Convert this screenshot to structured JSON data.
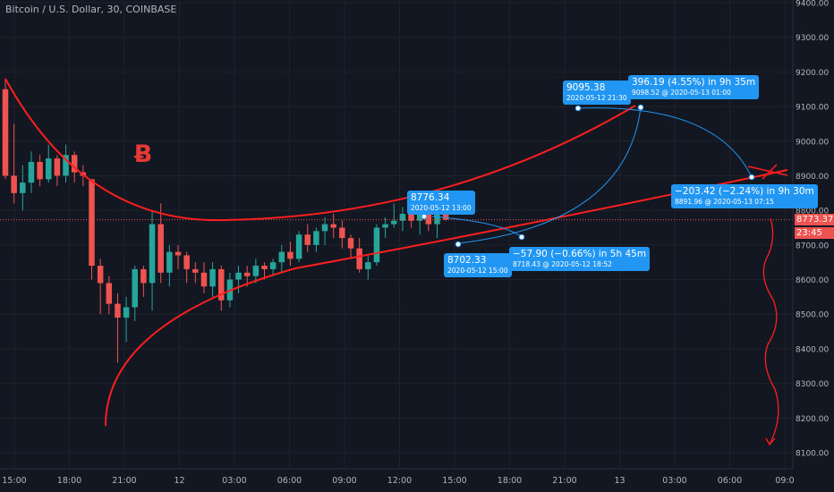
{
  "header": {
    "title": "Bitcoin / U.S. Dollar, 30, COINBASE"
  },
  "price_axis": {
    "current_price": "8773.37",
    "countdown": "23:45"
  },
  "colors": {
    "background": "#131722",
    "up": "#26a69a",
    "down": "#ef5350",
    "pattern_line": "#ff1e1e",
    "projection": "#2196f3",
    "logo": "#e53935"
  },
  "chart_data": {
    "type": "candlestick",
    "title": "Bitcoin / U.S. Dollar, 30, COINBASE",
    "y_ticks": [
      8100,
      8200,
      8300,
      8400,
      8500,
      8600,
      8700,
      8800,
      8900,
      9000,
      9100,
      9200,
      9300,
      9400
    ],
    "ylim": [
      8050,
      9410
    ],
    "x_ticks": [
      "15:00",
      "18:00",
      "21:00",
      "12",
      "03:00",
      "06:00",
      "09:00",
      "12:00",
      "15:00",
      "18:00",
      "21:00",
      "13",
      "03:00",
      "06:00",
      "09:0"
    ],
    "candles": [
      [
        9150,
        9180,
        8890,
        8900
      ],
      [
        8900,
        9050,
        8820,
        8850
      ],
      [
        8850,
        8930,
        8800,
        8880
      ],
      [
        8880,
        8970,
        8850,
        8940
      ],
      [
        8940,
        8960,
        8870,
        8890
      ],
      [
        8890,
        8990,
        8880,
        8950
      ],
      [
        8950,
        8960,
        8870,
        8900
      ],
      [
        8900,
        8990,
        8880,
        8960
      ],
      [
        8960,
        8970,
        8880,
        8910
      ],
      [
        8910,
        8930,
        8870,
        8900
      ],
      [
        8890,
        8890,
        8600,
        8640
      ],
      [
        8640,
        8660,
        8500,
        8590
      ],
      [
        8590,
        8610,
        8500,
        8530
      ],
      [
        8530,
        8560,
        8360,
        8490
      ],
      [
        8490,
        8550,
        8420,
        8520
      ],
      [
        8520,
        8640,
        8480,
        8630
      ],
      [
        8630,
        8640,
        8550,
        8590
      ],
      [
        8590,
        8800,
        8510,
        8760
      ],
      [
        8760,
        8820,
        8590,
        8620
      ],
      [
        8620,
        8700,
        8580,
        8680
      ],
      [
        8680,
        8700,
        8630,
        8670
      ],
      [
        8670,
        8680,
        8590,
        8630
      ],
      [
        8630,
        8650,
        8590,
        8620
      ],
      [
        8620,
        8650,
        8560,
        8580
      ],
      [
        8580,
        8650,
        8550,
        8630
      ],
      [
        8630,
        8640,
        8510,
        8540
      ],
      [
        8540,
        8620,
        8520,
        8600
      ],
      [
        8600,
        8640,
        8560,
        8620
      ],
      [
        8620,
        8640,
        8580,
        8610
      ],
      [
        8610,
        8660,
        8590,
        8640
      ],
      [
        8640,
        8650,
        8600,
        8630
      ],
      [
        8630,
        8660,
        8610,
        8650
      ],
      [
        8650,
        8700,
        8620,
        8680
      ],
      [
        8680,
        8710,
        8640,
        8660
      ],
      [
        8660,
        8740,
        8650,
        8730
      ],
      [
        8730,
        8760,
        8680,
        8700
      ],
      [
        8700,
        8750,
        8680,
        8740
      ],
      [
        8740,
        8780,
        8700,
        8760
      ],
      [
        8760,
        8790,
        8720,
        8750
      ],
      [
        8750,
        8770,
        8690,
        8720
      ],
      [
        8720,
        8730,
        8660,
        8690
      ],
      [
        8690,
        8720,
        8620,
        8630
      ],
      [
        8630,
        8670,
        8600,
        8650
      ],
      [
        8650,
        8760,
        8640,
        8750
      ],
      [
        8750,
        8780,
        8720,
        8760
      ],
      [
        8760,
        8820,
        8750,
        8770
      ],
      [
        8770,
        8810,
        8740,
        8790
      ],
      [
        8790,
        8830,
        8750,
        8770
      ],
      [
        8770,
        8810,
        8730,
        8790
      ],
      [
        8790,
        8810,
        8740,
        8760
      ],
      [
        8760,
        8800,
        8720,
        8790
      ],
      [
        8790,
        8810,
        8770,
        8773
      ]
    ],
    "pattern": "Bitcoin cup formation with upper and lower trend curves",
    "annotations": [
      {
        "price": "8776.34",
        "time": "2020-05-12 13:00"
      },
      {
        "price": "8702.33",
        "time": "2020-05-12 15:00"
      },
      {
        "price": "9095.38",
        "time": "2020-05-12 21:30"
      },
      {
        "change": "−57.90 (−0.66%) in 5h 45m",
        "target": "8718.43 @ 2020-05-12  18:52"
      },
      {
        "change": "396.19 (4.55%) in 9h 35m",
        "target": "9098.52 @ 2020-05-13  01:00"
      },
      {
        "change": "−203.42 (−2.24%) in 9h 30m",
        "target": "8891.96 @ 2020-05-13  07:15"
      }
    ]
  }
}
